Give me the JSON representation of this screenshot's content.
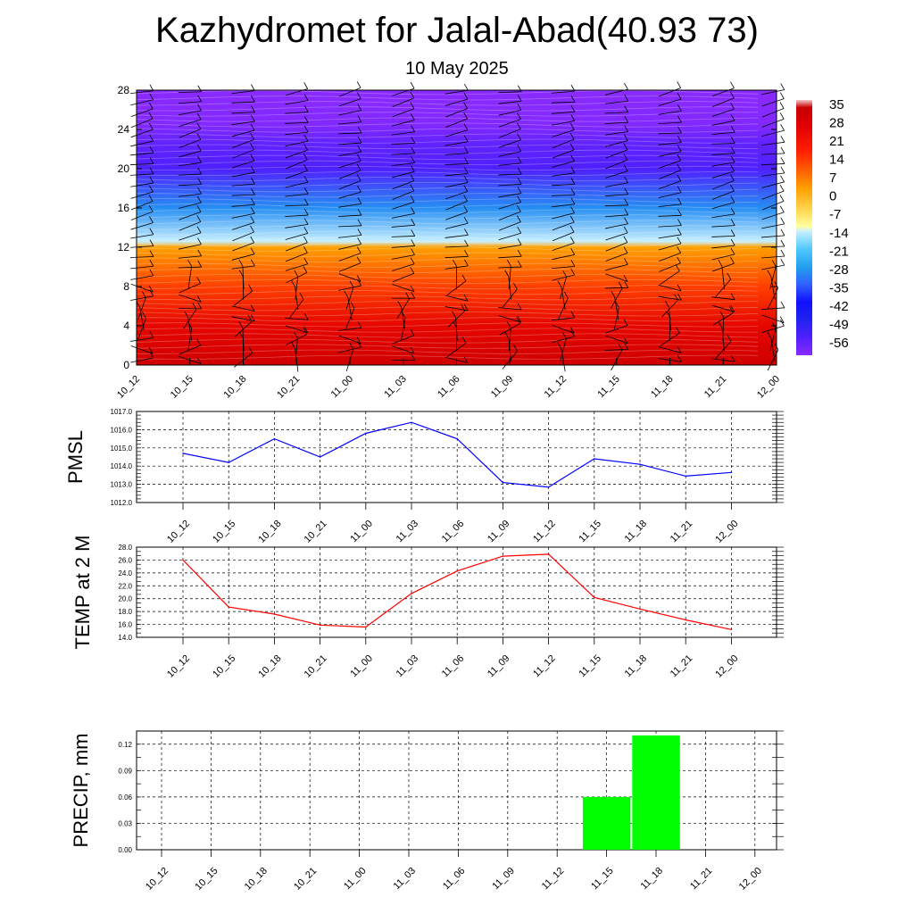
{
  "title": "Kazhydromet for Jalal-Abad(40.93 73)",
  "subtitle": "10 May 2025",
  "chart_data": [
    {
      "type": "heatmap",
      "name": "temperature-cross-section",
      "x_labels": [
        "10_12",
        "10_15",
        "10_18",
        "10_21",
        "11_00",
        "11_03",
        "11_06",
        "11_09",
        "11_12",
        "11_15",
        "11_18",
        "11_21",
        "12_00"
      ],
      "y_ticks": [
        0,
        4,
        8,
        12,
        16,
        20,
        24,
        28
      ],
      "ylim": [
        0,
        28
      ],
      "colorbar_labels": [
        "35",
        "28",
        "21",
        "14",
        "7",
        "0",
        "-7",
        "-14",
        "-21",
        "-28",
        "-35",
        "-42",
        "-49",
        "-56"
      ],
      "colorbar_range": [
        -63,
        38
      ],
      "profile": [
        {
          "level": 0,
          "value": 33
        },
        {
          "level": 4,
          "value": 26
        },
        {
          "level": 8,
          "value": 14
        },
        {
          "level": 12,
          "value": 3
        },
        {
          "level": 12.6,
          "value": -14
        },
        {
          "level": 16,
          "value": -30
        },
        {
          "level": 20,
          "value": -56
        },
        {
          "level": 22.5,
          "value": -58
        },
        {
          "level": 24.5,
          "value": -62
        },
        {
          "level": 28,
          "value": -63
        }
      ],
      "colors": {
        "hot": "#c80000",
        "red": "#ff1e00",
        "orange": "#ff9800",
        "yellow": "#ffff90",
        "cyan": "#22b8ee",
        "blue": "#1010ff",
        "purple": "#8a2aff"
      }
    },
    {
      "type": "line",
      "name": "pmsl",
      "ylabel": "PMSL",
      "categories": [
        "10_12",
        "10_15",
        "10_18",
        "10_21",
        "11_00",
        "11_03",
        "11_06",
        "11_09",
        "11_12",
        "11_15",
        "11_18",
        "11_21",
        "12_00"
      ],
      "values": [
        1014.7,
        1014.2,
        1015.5,
        1014.5,
        1015.8,
        1016.4,
        1015.5,
        1013.1,
        1012.85,
        1014.4,
        1014.1,
        1013.45,
        1013.65
      ],
      "yticks": [
        "1012.0",
        "1013.0",
        "1014.0",
        "1015.0",
        "1016.0",
        "1017.0"
      ],
      "ylim": [
        1012,
        1017
      ],
      "color": "#0000ff"
    },
    {
      "type": "line",
      "name": "temp-2m",
      "ylabel": "TEMP at 2 M",
      "categories": [
        "10_12",
        "10_15",
        "10_18",
        "10_21",
        "11_00",
        "11_03",
        "11_06",
        "11_09",
        "11_12",
        "11_15",
        "11_18",
        "11_21",
        "12_00"
      ],
      "values": [
        26.0,
        18.7,
        17.6,
        15.9,
        15.6,
        20.8,
        24.3,
        26.6,
        26.9,
        20.2,
        18.4,
        16.7,
        15.2
      ],
      "yticks": [
        "14.0",
        "16.0",
        "18.0",
        "20.0",
        "22.0",
        "24.0",
        "26.0",
        "28.0"
      ],
      "ylim": [
        14,
        28
      ],
      "color": "#ff0000"
    },
    {
      "type": "bar",
      "name": "precip",
      "ylabel": "PRECIP, mm",
      "categories": [
        "10_12",
        "10_15",
        "10_18",
        "10_21",
        "11_00",
        "11_03",
        "11_06",
        "11_09",
        "11_12",
        "11_15",
        "11_18",
        "11_21",
        "12_00"
      ],
      "values": [
        0,
        0,
        0,
        0,
        0,
        0,
        0,
        0,
        0,
        0.06,
        0.13,
        0,
        0
      ],
      "yticks": [
        "0.00",
        "0.03",
        "0.06",
        "0.09",
        "0.12"
      ],
      "ylim": [
        0,
        0.135
      ],
      "color": "#00ff00"
    }
  ]
}
